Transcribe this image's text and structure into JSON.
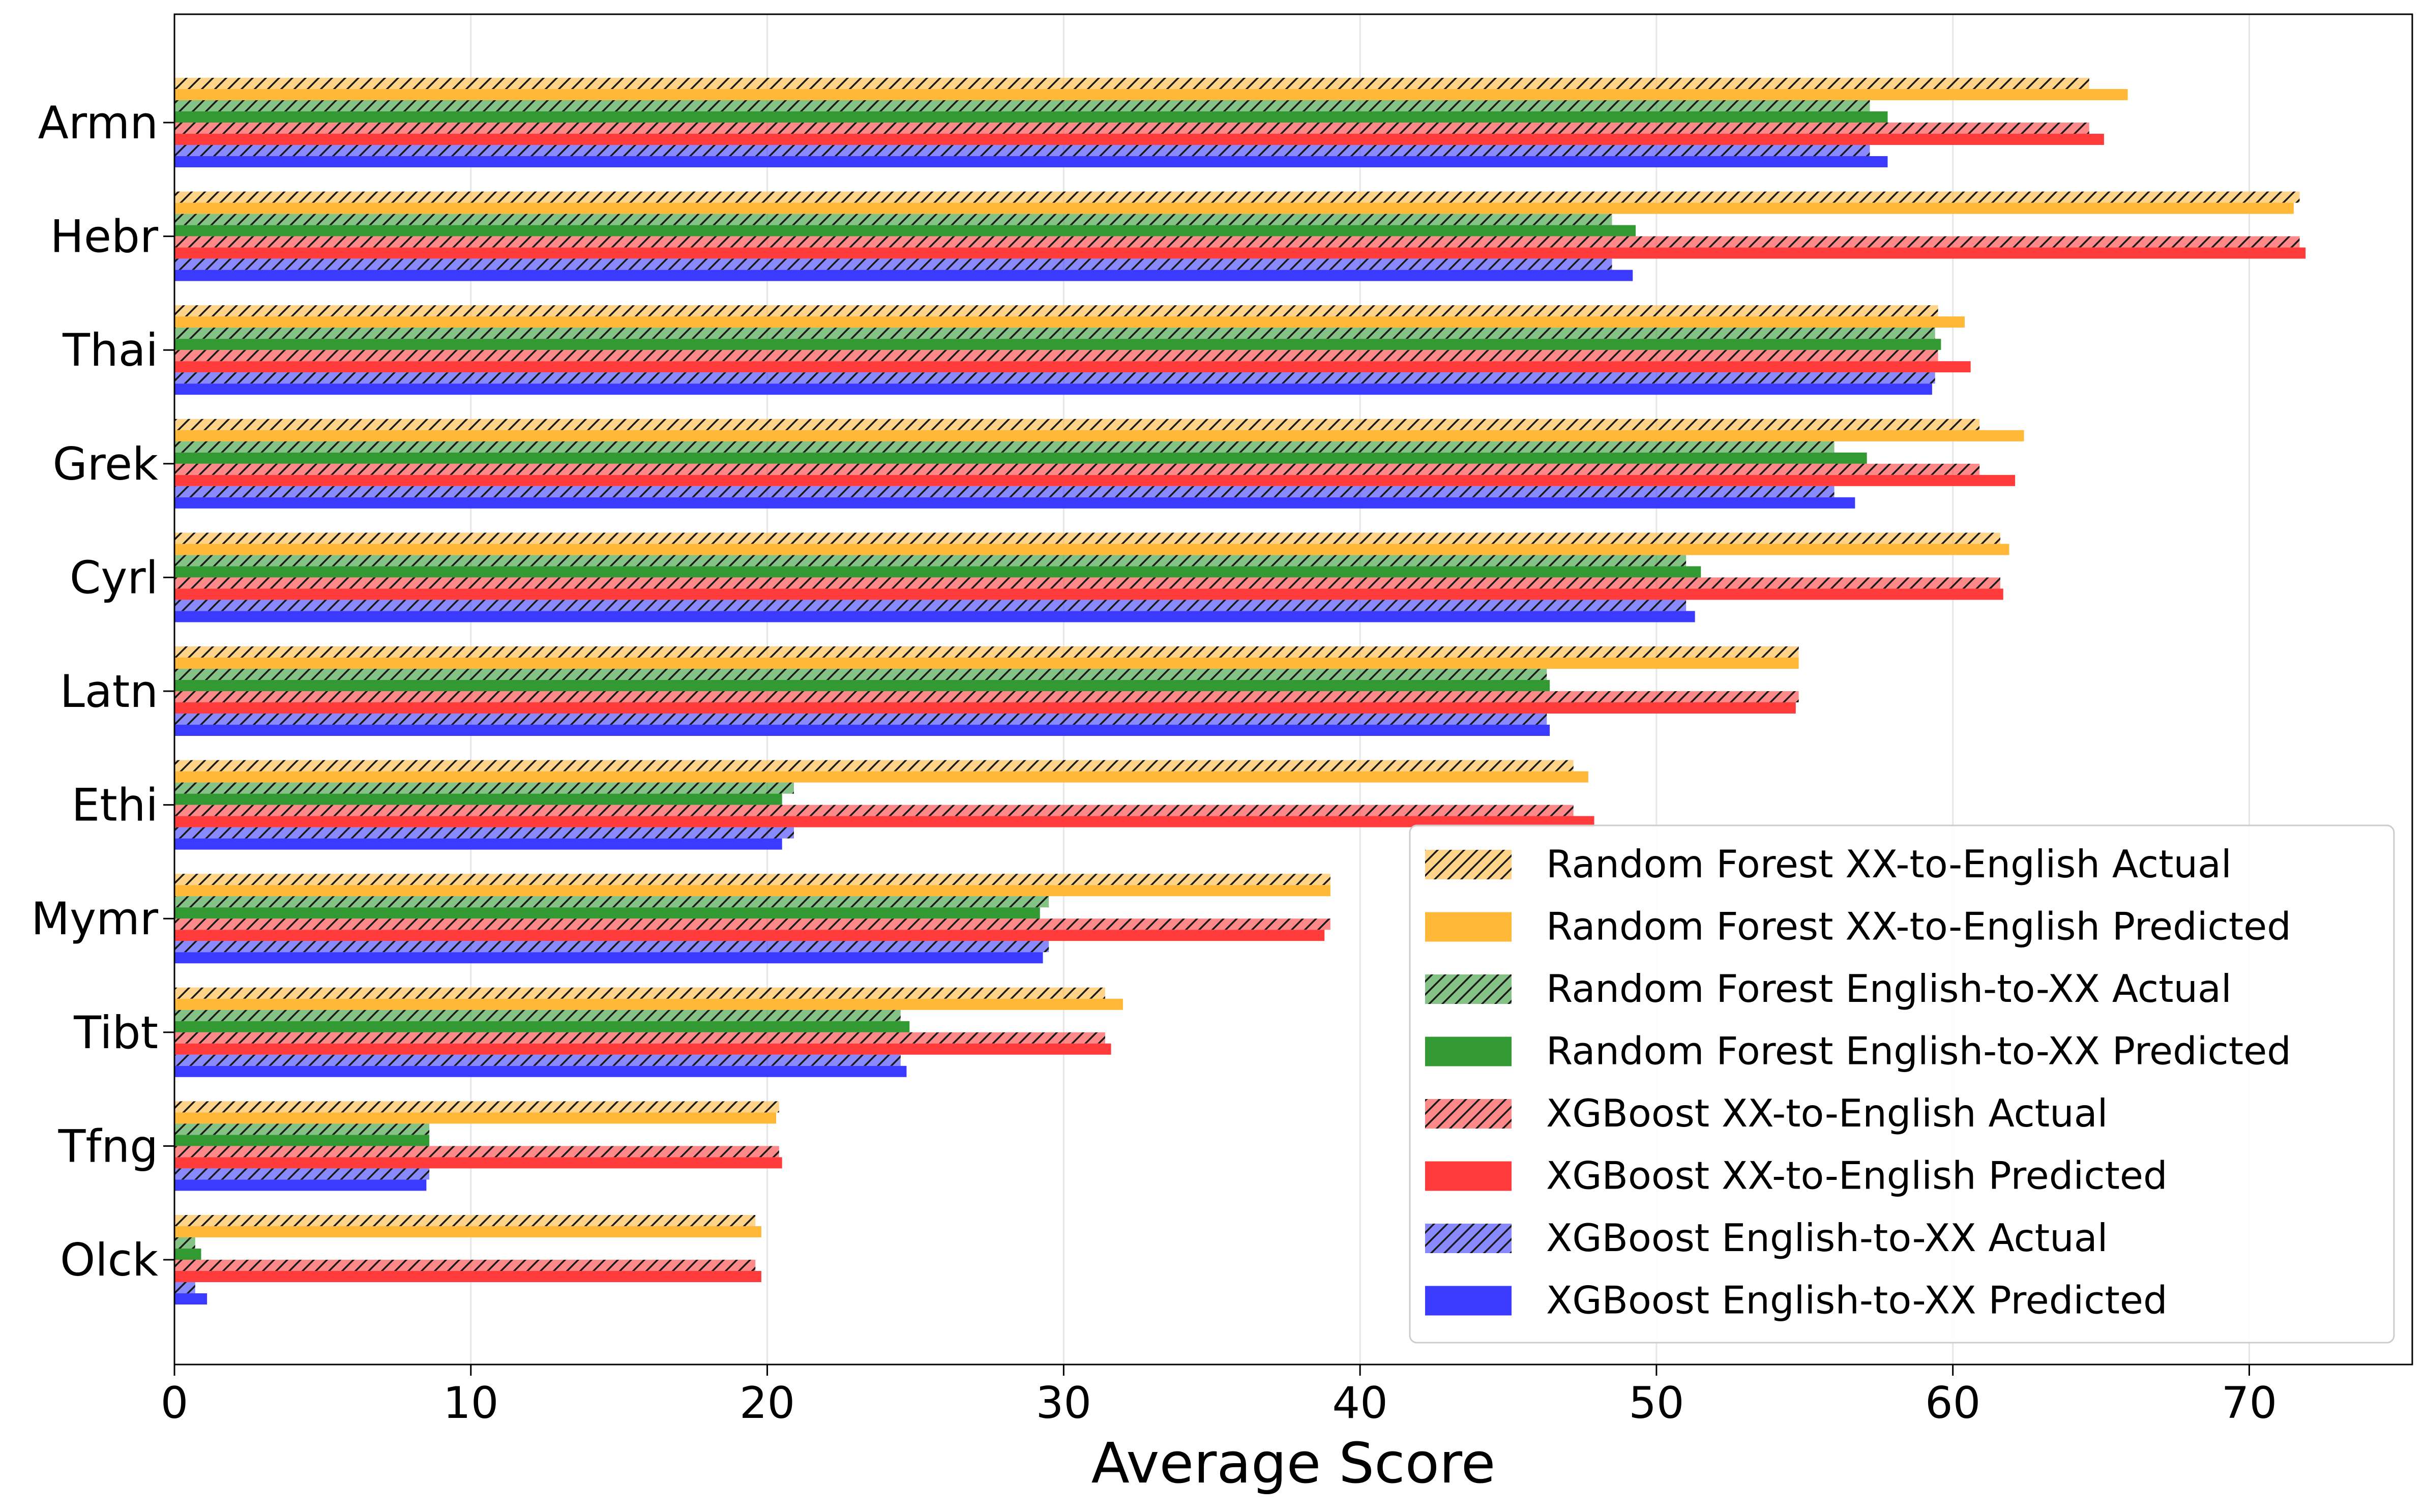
{
  "chart_data": {
    "type": "bar",
    "orientation": "horizontal",
    "xlabel": "Average Score",
    "ylabel": "",
    "title": "",
    "xlim": [
      0,
      75.5
    ],
    "xticks": [
      0,
      10,
      20,
      30,
      40,
      50,
      60,
      70
    ],
    "grid": "x",
    "legend_position": "lower-right",
    "categories": [
      "Armn",
      "Hebr",
      "Thai",
      "Grek",
      "Cyrl",
      "Latn",
      "Ethi",
      "Mymr",
      "Tibt",
      "Tfng",
      "Olck"
    ],
    "series": [
      {
        "name": "Random Forest XX-to-English Actual",
        "color": "#ffb838",
        "hatch": true,
        "values": [
          64.6,
          71.7,
          59.5,
          60.9,
          61.6,
          54.8,
          47.2,
          39.0,
          31.4,
          20.4,
          19.6
        ]
      },
      {
        "name": "Random Forest XX-to-English Predicted",
        "color": "#ffb838",
        "hatch": false,
        "values": [
          65.9,
          71.5,
          60.4,
          62.4,
          61.9,
          54.8,
          47.7,
          39.0,
          32.0,
          20.3,
          19.8
        ]
      },
      {
        "name": "Random Forest English-to-XX Actual",
        "color": "#339933",
        "hatch": true,
        "values": [
          57.2,
          48.5,
          59.4,
          56.0,
          51.0,
          46.3,
          20.9,
          29.5,
          24.5,
          8.6,
          0.7
        ]
      },
      {
        "name": "Random Forest English-to-XX Predicted",
        "color": "#339933",
        "hatch": false,
        "values": [
          57.8,
          49.3,
          59.6,
          57.1,
          51.5,
          46.4,
          20.5,
          29.2,
          24.8,
          8.6,
          0.9
        ]
      },
      {
        "name": "XGBoost XX-to-English Actual",
        "color": "#ff3b3b",
        "hatch": true,
        "values": [
          64.6,
          71.7,
          59.5,
          60.9,
          61.6,
          54.8,
          47.2,
          39.0,
          31.4,
          20.4,
          19.6
        ]
      },
      {
        "name": "XGBoost XX-to-English Predicted",
        "color": "#ff3b3b",
        "hatch": false,
        "values": [
          65.1,
          71.9,
          60.6,
          62.1,
          61.7,
          54.7,
          47.9,
          38.8,
          31.6,
          20.5,
          19.8
        ]
      },
      {
        "name": "XGBoost English-to-XX Actual",
        "color": "#3b3bff",
        "hatch": true,
        "values": [
          57.2,
          48.5,
          59.4,
          56.0,
          51.0,
          46.3,
          20.9,
          29.5,
          24.5,
          8.6,
          0.7
        ]
      },
      {
        "name": "XGBoost English-to-XX Predicted",
        "color": "#3b3bff",
        "hatch": false,
        "values": [
          57.8,
          49.2,
          59.3,
          56.7,
          51.3,
          46.4,
          20.5,
          29.3,
          24.7,
          8.5,
          1.1
        ]
      }
    ]
  }
}
